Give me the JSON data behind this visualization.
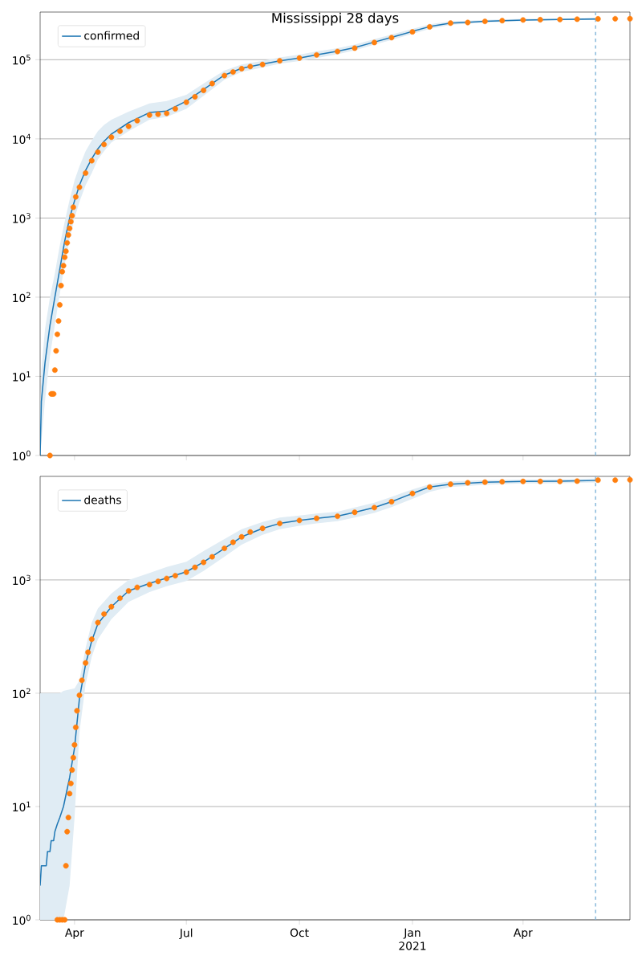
{
  "chart_data": [
    {
      "type": "line",
      "title": "Mississippi 28 days",
      "xlim": [
        "2020-03-04",
        "2021-06-27"
      ],
      "xticks": [
        {
          "value": "2020-04-01",
          "label": null
        },
        {
          "value": "2020-07-01",
          "label": null
        },
        {
          "value": "2020-10-01",
          "label": null
        },
        {
          "value": "2021-01-01",
          "label": null
        },
        {
          "value": "2021-04-01",
          "label": null
        }
      ],
      "ylim": [
        1,
        400000
      ],
      "log": "y",
      "yticks": [
        {
          "value": 1,
          "label": "10$^{0}$"
        },
        {
          "value": 10,
          "label": "10$^{1}$"
        },
        {
          "value": 100,
          "label": "10$^{2}$"
        },
        {
          "value": 1000,
          "label": "10$^{3}$"
        },
        {
          "value": 10000,
          "label": "10$^{4}$"
        },
        {
          "value": 100000,
          "label": "10$^{5}$"
        }
      ],
      "grid": "y",
      "legend": "top left",
      "tick_labels": "y",
      "ref_lines": [
        {
          "axis": "x",
          "value": "2021-05-30",
          "color": "#7fb3d8",
          "line_style": "dashed"
        }
      ],
      "series": [
        {
          "name": "confirmed",
          "color": "#1f77b4",
          "marker": "none",
          "x": [
            "2020-03-04",
            "2020-03-05",
            "2020-03-08",
            "2020-03-12",
            "2020-03-16",
            "2020-03-20",
            "2020-03-24",
            "2020-03-28",
            "2020-04-01",
            "2020-04-05",
            "2020-04-10",
            "2020-04-15",
            "2020-04-20",
            "2020-04-25",
            "2020-05-01",
            "2020-05-15",
            "2020-06-01",
            "2020-06-15",
            "2020-07-01",
            "2020-07-15",
            "2020-08-01",
            "2020-08-15",
            "2020-09-01",
            "2020-09-15",
            "2020-10-01",
            "2020-10-15",
            "2020-11-01",
            "2020-11-15",
            "2020-12-01",
            "2020-12-15",
            "2021-01-01",
            "2021-01-15",
            "2021-02-01",
            "2021-02-15",
            "2021-03-01",
            "2021-04-01",
            "2021-05-01",
            "2021-05-30"
          ],
          "values": [
            1,
            4.8,
            15,
            44,
            100,
            225,
            510,
            1000,
            1650,
            2600,
            4000,
            5600,
            7500,
            9300,
            11500,
            16000,
            21500,
            22500,
            30000,
            42000,
            64000,
            78000,
            88000,
            97000,
            105000,
            115000,
            128000,
            142000,
            167000,
            192000,
            228000,
            262000,
            290000,
            297000,
            305000,
            317000,
            322000,
            327000
          ],
          "upper": [
            3,
            12,
            40,
            100,
            200,
            450,
            900,
            1700,
            3000,
            4500,
            7000,
            9500,
            12500,
            15000,
            17500,
            22000,
            28000,
            30000,
            36000,
            50000,
            73000,
            87000,
            97000,
            107000,
            116000,
            127000,
            140000,
            155000,
            182000,
            208000,
            245000,
            280000,
            305000,
            312000,
            318000,
            328000,
            332000,
            336000
          ],
          "lower": [
            1,
            1.5,
            5,
            18,
            45,
            110,
            260,
            550,
            1000,
            1600,
            2600,
            3700,
            5500,
            7000,
            9000,
            12500,
            17500,
            19000,
            24000,
            35000,
            56000,
            70000,
            80000,
            89000,
            96000,
            105000,
            117000,
            131000,
            155000,
            178000,
            212000,
            245000,
            275000,
            285000,
            295000,
            308000,
            314000,
            318000
          ]
        },
        {
          "type": "scatter",
          "color": "#ff7f0e",
          "marker": "circle",
          "x": [
            "2020-03-12",
            "2020-03-13",
            "2020-03-14",
            "2020-03-15",
            "2020-03-16",
            "2020-03-17",
            "2020-03-18",
            "2020-03-19",
            "2020-03-20",
            "2020-03-21",
            "2020-03-22",
            "2020-03-23",
            "2020-03-24",
            "2020-03-25",
            "2020-03-26",
            "2020-03-27",
            "2020-03-28",
            "2020-03-29",
            "2020-03-30",
            "2020-03-31",
            "2020-04-02",
            "2020-04-05",
            "2020-04-10",
            "2020-04-15",
            "2020-04-20",
            "2020-04-25",
            "2020-05-01",
            "2020-05-08",
            "2020-05-15",
            "2020-05-22",
            "2020-06-01",
            "2020-06-08",
            "2020-06-15",
            "2020-06-22",
            "2020-07-01",
            "2020-07-08",
            "2020-07-15",
            "2020-07-22",
            "2020-08-01",
            "2020-08-08",
            "2020-08-15",
            "2020-08-22",
            "2020-09-01",
            "2020-09-15",
            "2020-10-01",
            "2020-10-15",
            "2020-11-01",
            "2020-11-15",
            "2020-12-01",
            "2020-12-15",
            "2021-01-01",
            "2021-01-15",
            "2021-02-01",
            "2021-02-15",
            "2021-03-01",
            "2021-03-15",
            "2021-04-01",
            "2021-04-15",
            "2021-05-01",
            "2021-05-15",
            "2021-06-01",
            "2021-06-15",
            "2021-06-27"
          ],
          "values": [
            1,
            6,
            6,
            6,
            12,
            21,
            34,
            50,
            80,
            140,
            210,
            250,
            320,
            380,
            485,
            610,
            740,
            900,
            1070,
            1370,
            1850,
            2450,
            3700,
            5300,
            6800,
            8500,
            10500,
            12500,
            14400,
            17000,
            20000,
            20500,
            21000,
            24000,
            29000,
            34000,
            41000,
            50000,
            63000,
            70000,
            77000,
            82000,
            87000,
            97000,
            105000,
            115000,
            127000,
            140000,
            165000,
            190000,
            225000,
            260000,
            290000,
            295000,
            305000,
            312000,
            318000,
            320000,
            322000,
            325000,
            328000,
            329000,
            330000
          ]
        }
      ]
    },
    {
      "type": "line",
      "xlim": [
        "2020-03-04",
        "2021-06-27"
      ],
      "xticks": [
        {
          "value": "2020-04-01",
          "label": "Apr"
        },
        {
          "value": "2020-07-01",
          "label": "Jul"
        },
        {
          "value": "2020-10-01",
          "label": "Oct"
        },
        {
          "value": "2021-01-01",
          "label": "Jan 2021"
        },
        {
          "value": "2021-04-01",
          "label": "Apr"
        }
      ],
      "ylim": [
        1,
        8200
      ],
      "log": "y",
      "yticks": [
        {
          "value": 1,
          "label": "10$^{0}$"
        },
        {
          "value": 10,
          "label": "10$^{1}$"
        },
        {
          "value": 100,
          "label": "10$^{2}$"
        },
        {
          "value": 1000,
          "label": "10$^{3}$"
        }
      ],
      "grid": "y",
      "legend": "top left",
      "ref_lines": [
        {
          "axis": "x",
          "value": "2021-05-30",
          "color": "#7fb3d8",
          "line_style": "dashed"
        }
      ],
      "series": [
        {
          "name": "deaths",
          "color": "#1f77b4",
          "marker": "none",
          "x": [
            "2020-03-04",
            "2020-03-05",
            "2020-03-09",
            "2020-03-10",
            "2020-03-12",
            "2020-03-13",
            "2020-03-15",
            "2020-03-16",
            "2020-03-18",
            "2020-03-20",
            "2020-03-23",
            "2020-03-28",
            "2020-04-01",
            "2020-04-05",
            "2020-04-10",
            "2020-04-15",
            "2020-04-20",
            "2020-05-01",
            "2020-05-15",
            "2020-06-01",
            "2020-06-15",
            "2020-07-01",
            "2020-07-15",
            "2020-08-01",
            "2020-08-15",
            "2020-09-01",
            "2020-09-15",
            "2020-10-01",
            "2020-10-15",
            "2020-11-01",
            "2020-11-15",
            "2020-12-01",
            "2020-12-15",
            "2021-01-01",
            "2021-01-15",
            "2021-02-01",
            "2021-03-01",
            "2021-04-01",
            "2021-05-01",
            "2021-05-30"
          ],
          "values": [
            2,
            3,
            3,
            4,
            4,
            5,
            5,
            6,
            7,
            8,
            10,
            18,
            33,
            90,
            180,
            290,
            410,
            580,
            800,
            930,
            1040,
            1180,
            1440,
            1900,
            2400,
            2850,
            3150,
            3350,
            3500,
            3650,
            3950,
            4350,
            4900,
            5800,
            6600,
            7000,
            7300,
            7400,
            7450,
            7550
          ],
          "upper": [
            100,
            100,
            100,
            100,
            100,
            100,
            100,
            100,
            100,
            100,
            105,
            108,
            110,
            130,
            250,
            420,
            560,
            760,
            1000,
            1150,
            1300,
            1450,
            1800,
            2300,
            2800,
            3250,
            3550,
            3700,
            3850,
            4000,
            4350,
            4800,
            5400,
            6300,
            7000,
            7400,
            7600,
            7700,
            7750,
            7850
          ],
          "lower": [
            1,
            1,
            1,
            1,
            1,
            1,
            1,
            1,
            1,
            1,
            1,
            2,
            8,
            45,
            120,
            210,
            300,
            450,
            640,
            780,
            880,
            980,
            1200,
            1600,
            2050,
            2500,
            2800,
            3000,
            3150,
            3300,
            3550,
            3900,
            4400,
            5200,
            6000,
            6600,
            6900,
            7100,
            7150,
            7250
          ]
        },
        {
          "type": "scatter",
          "color": "#ff7f0e",
          "marker": "circle",
          "x": [
            "2020-03-18",
            "2020-03-20",
            "2020-03-22",
            "2020-03-24",
            "2020-03-25",
            "2020-03-26",
            "2020-03-27",
            "2020-03-28",
            "2020-03-29",
            "2020-03-30",
            "2020-03-31",
            "2020-04-01",
            "2020-04-02",
            "2020-04-03",
            "2020-04-05",
            "2020-04-07",
            "2020-04-10",
            "2020-04-12",
            "2020-04-15",
            "2020-04-20",
            "2020-04-25",
            "2020-05-01",
            "2020-05-08",
            "2020-05-15",
            "2020-05-22",
            "2020-06-01",
            "2020-06-08",
            "2020-06-15",
            "2020-06-22",
            "2020-07-01",
            "2020-07-08",
            "2020-07-15",
            "2020-07-22",
            "2020-08-01",
            "2020-08-08",
            "2020-08-15",
            "2020-08-22",
            "2020-09-01",
            "2020-09-15",
            "2020-10-01",
            "2020-10-15",
            "2020-11-01",
            "2020-11-15",
            "2020-12-01",
            "2020-12-15",
            "2021-01-01",
            "2021-01-15",
            "2021-02-01",
            "2021-02-15",
            "2021-03-01",
            "2021-03-15",
            "2021-04-01",
            "2021-04-15",
            "2021-05-01",
            "2021-05-15",
            "2021-06-01",
            "2021-06-15",
            "2021-06-27"
          ],
          "values": [
            1,
            1,
            1,
            1,
            3,
            6,
            8,
            13,
            16,
            21,
            27,
            35,
            50,
            70,
            96,
            130,
            185,
            230,
            300,
            420,
            500,
            580,
            690,
            800,
            860,
            910,
            970,
            1030,
            1090,
            1170,
            1290,
            1430,
            1600,
            1900,
            2150,
            2400,
            2650,
            2850,
            3150,
            3350,
            3500,
            3650,
            3950,
            4350,
            4900,
            5800,
            6600,
            7000,
            7200,
            7300,
            7350,
            7400,
            7400,
            7400,
            7450,
            7600,
            7600,
            7650
          ]
        }
      ]
    }
  ]
}
